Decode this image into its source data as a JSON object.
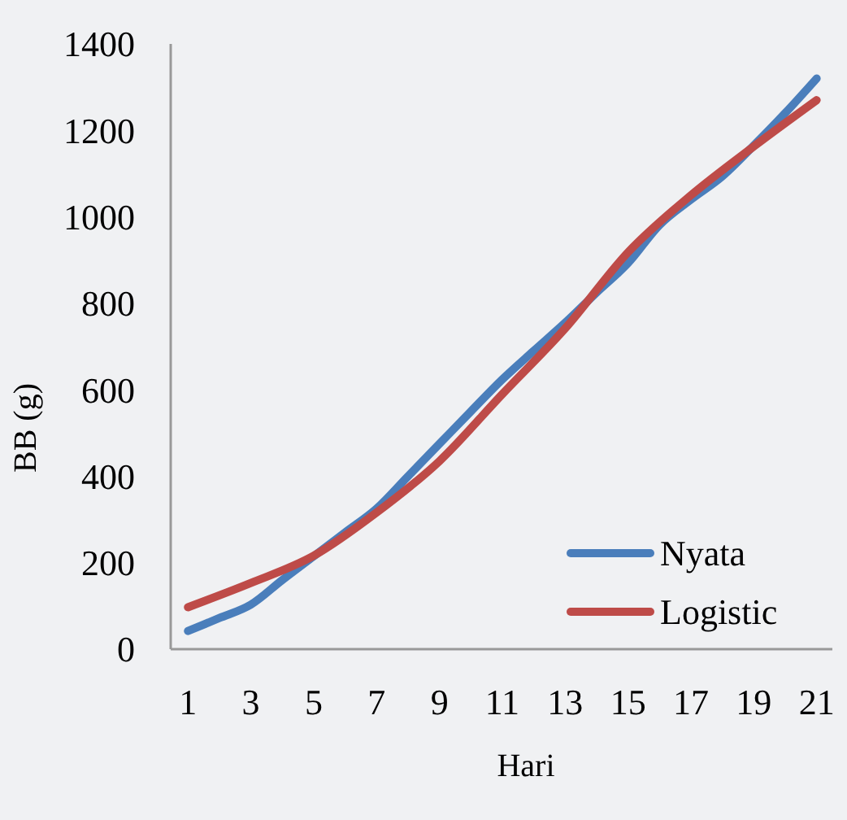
{
  "chart_data": {
    "type": "line",
    "xlabel": "Hari",
    "ylabel": "BB (g)",
    "xlim": [
      0.45,
      21.5
    ],
    "xticks": [
      1,
      3,
      5,
      7,
      9,
      11,
      13,
      15,
      17,
      19,
      21
    ],
    "ylim": [
      0,
      1400
    ],
    "yticks": [
      0,
      200,
      400,
      600,
      800,
      1000,
      1200,
      1400
    ],
    "grid": false,
    "legend": "bottom right",
    "marker": "none",
    "line_style": "solid",
    "series": [
      {
        "name": "Nyata",
        "color": "#4a7ebb",
        "x": [
          1,
          2,
          3,
          4,
          5,
          6,
          7,
          8,
          9,
          10,
          11,
          12,
          13,
          14,
          15,
          16,
          17,
          18,
          19,
          20,
          21
        ],
        "values": [
          42,
          72,
          103,
          160,
          215,
          270,
          325,
          400,
          475,
          550,
          624,
          690,
          755,
          825,
          893,
          981,
          1040,
          1094,
          1165,
          1240,
          1320
        ]
      },
      {
        "name": "Logistic",
        "color": "#be4b48",
        "x": [
          1,
          3,
          5,
          7,
          9,
          11,
          13,
          15,
          17,
          19,
          21
        ],
        "values": [
          97,
          153,
          216,
          316,
          435,
          590,
          742,
          918,
          1050,
          1163,
          1270
        ]
      }
    ]
  }
}
